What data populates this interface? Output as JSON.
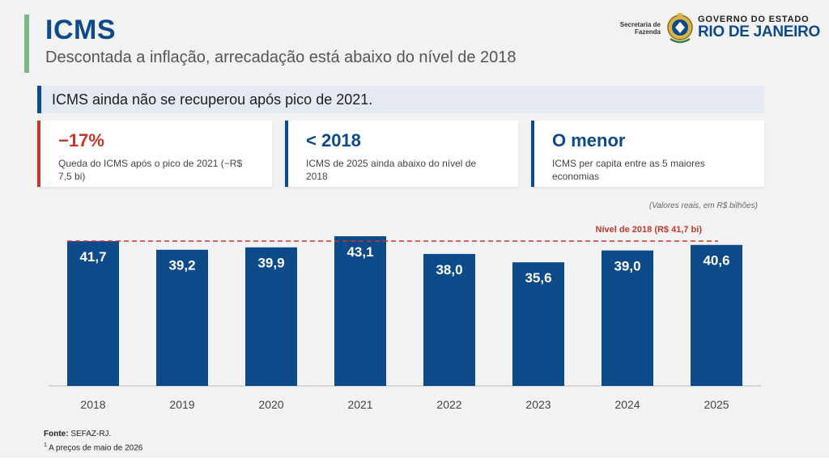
{
  "header": {
    "title": "ICMS",
    "subtitle": "Descontada a inflação, arrecadação está abaixo do nível de 2018"
  },
  "logo": {
    "secretaria": "Secretaria de Fazenda",
    "governo": "GOVERNO DO ESTADO",
    "estado": "RIO DE JANEIRO"
  },
  "banner": {
    "text": "ICMS ainda não se recuperou após pico de 2021."
  },
  "cards": [
    {
      "value": "−17%",
      "description": "Queda do ICMS após o pico de 2021 (−R$ 7,5 bi)",
      "color": "#c0392b"
    },
    {
      "value": "< 2018",
      "description": "ICMS de 2025 ainda abaixo do nível de 2018",
      "color": "#0d4a8a"
    },
    {
      "value": "O menor",
      "description": "ICMS per capita entre as 5 maiores economias",
      "color": "#0d4a8a"
    }
  ],
  "units_note": "(Valores reais, em R$ bilhões)",
  "chart_data": {
    "type": "bar",
    "categories": [
      "2018",
      "2019",
      "2020",
      "2021",
      "2022",
      "2023",
      "2024",
      "2025"
    ],
    "values": [
      41.7,
      39.2,
      39.9,
      43.1,
      38.0,
      35.6,
      39.0,
      40.6
    ],
    "value_labels": [
      "41,7",
      "39,2",
      "39,9",
      "43,1",
      "38,0",
      "35,6",
      "39,0",
      "40,6"
    ],
    "ylim": [
      0,
      44.5
    ],
    "bar_color": "#0d4a8a",
    "reference_line": {
      "value": 41.7,
      "label": "Nível de 2018 (R$ 41,7 bi)",
      "color": "#c0392b"
    },
    "grid": false
  },
  "footer": {
    "source_label": "Fonte:",
    "source_value": "SEFAZ-RJ.",
    "note_marker": "1",
    "note": "A preços de maio de 2026"
  }
}
